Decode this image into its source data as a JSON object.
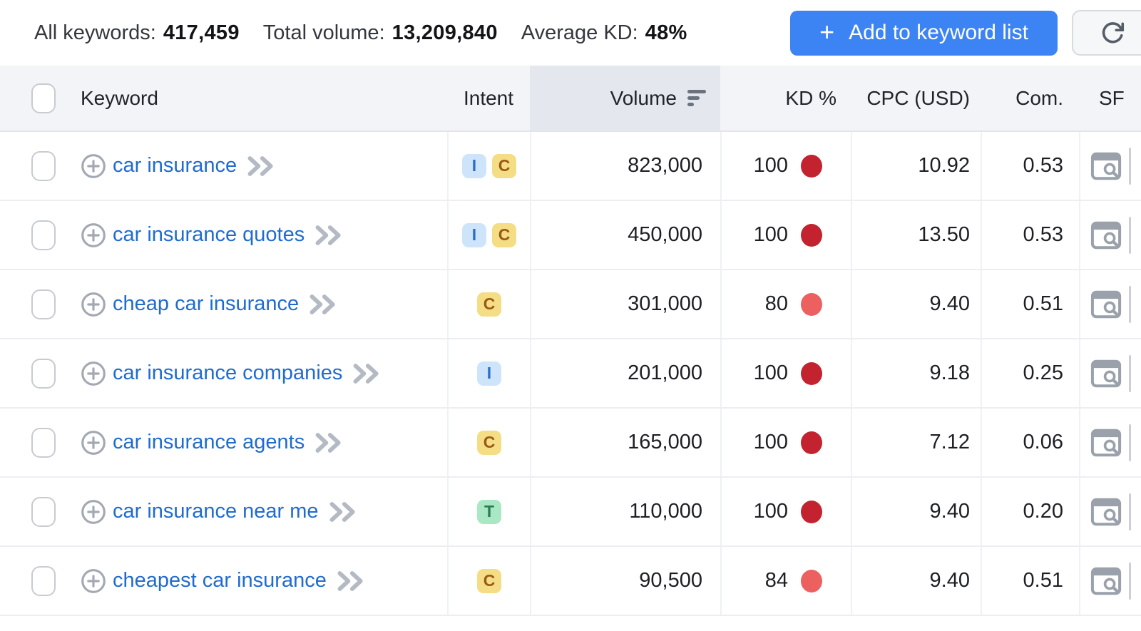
{
  "toolbar": {
    "stats": [
      {
        "label": "All keywords:",
        "value": "417,459"
      },
      {
        "label": "Total volume:",
        "value": "13,209,840"
      },
      {
        "label": "Average KD:",
        "value": "48%"
      }
    ],
    "add_button": {
      "plus": "+",
      "label": "Add to keyword list"
    },
    "refresh_button": {
      "icon": "refresh-icon"
    }
  },
  "table": {
    "header": {
      "keyword": "Keyword",
      "intent": "Intent",
      "volume": "Volume",
      "kd": "KD %",
      "cpc": "CPC (USD)",
      "com": "Com.",
      "sf": "SF"
    },
    "sorted_column": "Volume",
    "sort_direction": "descending",
    "rows": [
      {
        "keyword": "car insurance",
        "intents": [
          "I",
          "C"
        ],
        "volume": "823,000",
        "kd": "100",
        "kd_level": "high",
        "cpc": "10.92",
        "com": "0.53"
      },
      {
        "keyword": "car insurance quotes",
        "intents": [
          "I",
          "C"
        ],
        "volume": "450,000",
        "kd": "100",
        "kd_level": "high",
        "cpc": "13.50",
        "com": "0.53"
      },
      {
        "keyword": "cheap car insurance",
        "intents": [
          "C"
        ],
        "volume": "301,000",
        "kd": "80",
        "kd_level": "mid",
        "cpc": "9.40",
        "com": "0.51"
      },
      {
        "keyword": "car insurance companies",
        "intents": [
          "I"
        ],
        "volume": "201,000",
        "kd": "100",
        "kd_level": "high",
        "cpc": "9.18",
        "com": "0.25"
      },
      {
        "keyword": "car insurance agents",
        "intents": [
          "C"
        ],
        "volume": "165,000",
        "kd": "100",
        "kd_level": "high",
        "cpc": "7.12",
        "com": "0.06"
      },
      {
        "keyword": "car insurance near me",
        "intents": [
          "T"
        ],
        "volume": "110,000",
        "kd": "100",
        "kd_level": "high",
        "cpc": "9.40",
        "com": "0.20"
      },
      {
        "keyword": "cheapest car insurance",
        "intents": [
          "C"
        ],
        "volume": "90,500",
        "kd": "84",
        "kd_level": "mid",
        "cpc": "9.40",
        "com": "0.51"
      }
    ]
  },
  "icons": {
    "add_button": "plus-icon",
    "refresh": "refresh-icon",
    "volume_sort": "sort-descending-icon",
    "keyword_add": "plus-circle-icon",
    "keyword_expand": "chevron-double-right-icon",
    "serp_features": "serp-features-preview-icon"
  },
  "colors": {
    "accent_blue": "#3c83f4",
    "link_blue": "#1f6bd0",
    "header_bg": "#f3f4f8",
    "volume_col_highlight": "#e5e7ef",
    "kd_high": "#c2232f",
    "kd_mid": "#ec6060",
    "intent_i_bg": "#cde4fb",
    "intent_i_fg": "#2a6fc4",
    "intent_c_bg": "#f4dd85",
    "intent_c_fg": "#975a17",
    "intent_t_bg": "#aae7c4",
    "intent_t_fg": "#2a7d52"
  }
}
